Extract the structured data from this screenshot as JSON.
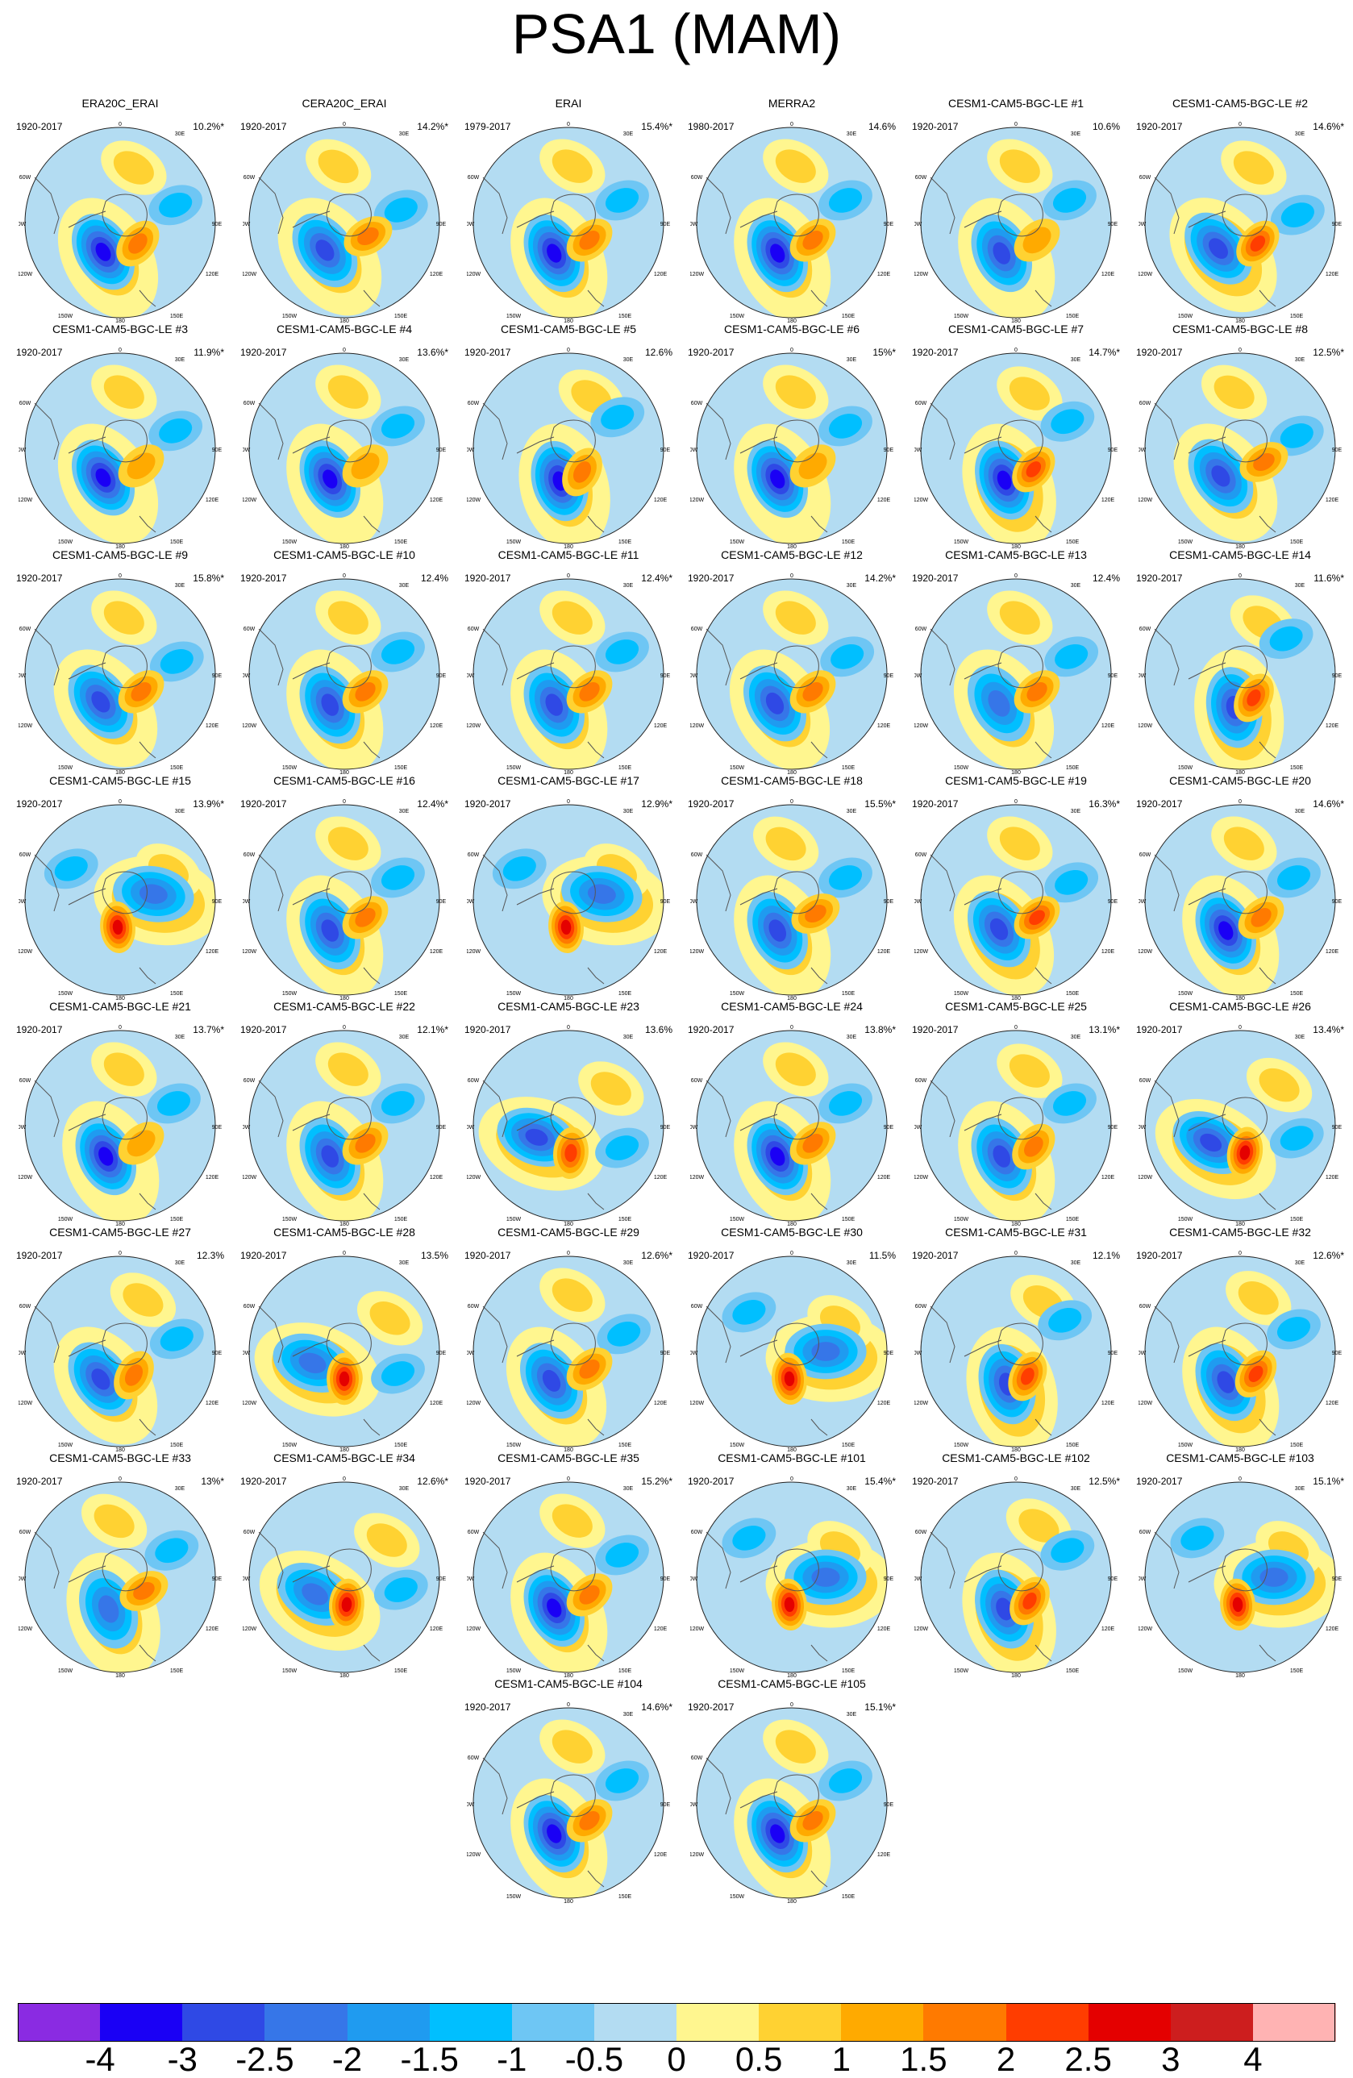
{
  "title": "PSA1 (MAM)",
  "colors": [
    "#8a2be2",
    "#1a00f5",
    "#2f49e5",
    "#3676e8",
    "#1f9bf0",
    "#00bfff",
    "#6ec6f4",
    "#b3dcf2",
    "#fff68f",
    "#ffd232",
    "#ffaa00",
    "#ff7a00",
    "#ff3d00",
    "#e40000",
    "#cd1e1e",
    "#ffb3b3"
  ],
  "colorbar_labels": [
    "-4",
    "-3",
    "-2.5",
    "-2",
    "-1.5",
    "-1",
    "-0.5",
    "0",
    "0.5",
    "1",
    "1.5",
    "2",
    "2.5",
    "3",
    "4"
  ],
  "map_ticks": {
    "top": "0",
    "left_upper": "60W",
    "left_mid": "90W",
    "left_lower": "120W",
    "bottom_left": "150W",
    "bottom": "180",
    "bottom_right": "150E",
    "right_lower": "120E",
    "right_mid": "90E",
    "right_upper": "30E",
    "top_right": "30E"
  },
  "panels": [
    {
      "title": "ERA20C_ERAI",
      "period": "1920-2017",
      "pct": "10.2%*",
      "low_strength": 4,
      "high_strength": 2,
      "low_angle": 240,
      "high_angle": 310
    },
    {
      "title": "CERA20C_ERAI",
      "period": "1920-2017",
      "pct": "14.2%*",
      "low_strength": 3,
      "high_strength": 2,
      "low_angle": 235,
      "high_angle": 330
    },
    {
      "title": "ERAI",
      "period": "1979-2017",
      "pct": "15.4%*",
      "low_strength": 4,
      "high_strength": 2,
      "low_angle": 245,
      "high_angle": 320
    },
    {
      "title": "MERRA2",
      "period": "1980-2017",
      "pct": "14.6%",
      "low_strength": 4,
      "high_strength": 2,
      "low_angle": 245,
      "high_angle": 320
    },
    {
      "title": "CESM1-CAM5-BGC-LE #1",
      "period": "1920-2017",
      "pct": "10.6%",
      "low_strength": 3,
      "high_strength": 1,
      "low_angle": 245,
      "high_angle": 320
    },
    {
      "title": "CESM1-CAM5-BGC-LE #2",
      "period": "1920-2017",
      "pct": "14.6%*",
      "low_strength": 3,
      "high_strength": 3,
      "low_angle": 230,
      "high_angle": 310
    },
    {
      "title": "CESM1-CAM5-BGC-LE #3",
      "period": "1920-2017",
      "pct": "11.9%*",
      "low_strength": 4,
      "high_strength": 1,
      "low_angle": 240,
      "high_angle": 320
    },
    {
      "title": "CESM1-CAM5-BGC-LE #4",
      "period": "1920-2017",
      "pct": "13.6%*",
      "low_strength": 4,
      "high_strength": 1,
      "low_angle": 245,
      "high_angle": 320
    },
    {
      "title": "CESM1-CAM5-BGC-LE #5",
      "period": "1920-2017",
      "pct": "12.6%",
      "low_strength": 4,
      "high_strength": 2,
      "low_angle": 255,
      "high_angle": 300
    },
    {
      "title": "CESM1-CAM5-BGC-LE #6",
      "period": "1920-2017",
      "pct": "15%*",
      "low_strength": 4,
      "high_strength": 1,
      "low_angle": 245,
      "high_angle": 320
    },
    {
      "title": "CESM1-CAM5-BGC-LE #7",
      "period": "1920-2017",
      "pct": "14.7%*",
      "low_strength": 4,
      "high_strength": 3,
      "low_angle": 250,
      "high_angle": 310
    },
    {
      "title": "CESM1-CAM5-BGC-LE #8",
      "period": "1920-2017",
      "pct": "12.5%*",
      "low_strength": 3,
      "high_strength": 2,
      "low_angle": 235,
      "high_angle": 330
    },
    {
      "title": "CESM1-CAM5-BGC-LE #9",
      "period": "1920-2017",
      "pct": "15.8%*",
      "low_strength": 3,
      "high_strength": 2,
      "low_angle": 235,
      "high_angle": 320
    },
    {
      "title": "CESM1-CAM5-BGC-LE #10",
      "period": "1920-2017",
      "pct": "12.4%",
      "low_strength": 3,
      "high_strength": 2,
      "low_angle": 245,
      "high_angle": 320
    },
    {
      "title": "CESM1-CAM5-BGC-LE #11",
      "period": "1920-2017",
      "pct": "12.4%*",
      "low_strength": 3,
      "high_strength": 2,
      "low_angle": 245,
      "high_angle": 320
    },
    {
      "title": "CESM1-CAM5-BGC-LE #12",
      "period": "1920-2017",
      "pct": "14.2%*",
      "low_strength": 3,
      "high_strength": 2,
      "low_angle": 240,
      "high_angle": 320
    },
    {
      "title": "CESM1-CAM5-BGC-LE #13",
      "period": "1920-2017",
      "pct": "12.4%",
      "low_strength": 2,
      "high_strength": 2,
      "low_angle": 240,
      "high_angle": 320
    },
    {
      "title": "CESM1-CAM5-BGC-LE #14",
      "period": "1920-2017",
      "pct": "11.6%*",
      "low_strength": 3,
      "high_strength": 3,
      "low_angle": 260,
      "high_angle": 300
    },
    {
      "title": "CESM1-CAM5-BGC-LE #15",
      "period": "1920-2017",
      "pct": "13.9%*",
      "low_strength": 2,
      "high_strength": 4,
      "low_angle": 10,
      "high_angle": 265
    },
    {
      "title": "CESM1-CAM5-BGC-LE #16",
      "period": "1920-2017",
      "pct": "12.4%*",
      "low_strength": 3,
      "high_strength": 2,
      "low_angle": 245,
      "high_angle": 320
    },
    {
      "title": "CESM1-CAM5-BGC-LE #17",
      "period": "1920-2017",
      "pct": "12.9%*",
      "low_strength": 2,
      "high_strength": 4,
      "low_angle": 10,
      "high_angle": 265
    },
    {
      "title": "CESM1-CAM5-BGC-LE #18",
      "period": "1920-2017",
      "pct": "15.5%*",
      "low_strength": 3,
      "high_strength": 2,
      "low_angle": 245,
      "high_angle": 330
    },
    {
      "title": "CESM1-CAM5-BGC-LE #19",
      "period": "1920-2017",
      "pct": "16.3%*",
      "low_strength": 3,
      "high_strength": 3,
      "low_angle": 240,
      "high_angle": 320
    },
    {
      "title": "CESM1-CAM5-BGC-LE #20",
      "period": "1920-2017",
      "pct": "14.6%*",
      "low_strength": 4,
      "high_strength": 2,
      "low_angle": 245,
      "high_angle": 320
    },
    {
      "title": "CESM1-CAM5-BGC-LE #21",
      "period": "1920-2017",
      "pct": "13.7%*",
      "low_strength": 4,
      "high_strength": 1,
      "low_angle": 245,
      "high_angle": 320
    },
    {
      "title": "CESM1-CAM5-BGC-LE #22",
      "period": "1920-2017",
      "pct": "12.1%*",
      "low_strength": 3,
      "high_strength": 2,
      "low_angle": 245,
      "high_angle": 320
    },
    {
      "title": "CESM1-CAM5-BGC-LE #23",
      "period": "1920-2017",
      "pct": "13.6%",
      "low_strength": 3,
      "high_strength": 3,
      "low_angle": 200,
      "high_angle": 275
    },
    {
      "title": "CESM1-CAM5-BGC-LE #24",
      "period": "1920-2017",
      "pct": "13.8%*",
      "low_strength": 4,
      "high_strength": 2,
      "low_angle": 245,
      "high_angle": 320
    },
    {
      "title": "CESM1-CAM5-BGC-LE #25",
      "period": "1920-2017",
      "pct": "13.1%*",
      "low_strength": 3,
      "high_strength": 2,
      "low_angle": 245,
      "high_angle": 310
    },
    {
      "title": "CESM1-CAM5-BGC-LE #26",
      "period": "1920-2017",
      "pct": "13.4%*",
      "low_strength": 3,
      "high_strength": 4,
      "low_angle": 210,
      "high_angle": 280
    },
    {
      "title": "CESM1-CAM5-BGC-LE #27",
      "period": "1920-2017",
      "pct": "12.3%",
      "low_strength": 3,
      "high_strength": 2,
      "low_angle": 235,
      "high_angle": 300
    },
    {
      "title": "CESM1-CAM5-BGC-LE #28",
      "period": "1920-2017",
      "pct": "13.5%",
      "low_strength": 2,
      "high_strength": 4,
      "low_angle": 200,
      "high_angle": 270
    },
    {
      "title": "CESM1-CAM5-BGC-LE #29",
      "period": "1920-2017",
      "pct": "12.6%*",
      "low_strength": 3,
      "high_strength": 2,
      "low_angle": 240,
      "high_angle": 320
    },
    {
      "title": "CESM1-CAM5-BGC-LE #30",
      "period": "1920-2017",
      "pct": "11.5%",
      "low_strength": 2,
      "high_strength": 4,
      "low_angle": 0,
      "high_angle": 265
    },
    {
      "title": "CESM1-CAM5-BGC-LE #31",
      "period": "1920-2017",
      "pct": "12.1%",
      "low_strength": 3,
      "high_strength": 3,
      "low_angle": 255,
      "high_angle": 295
    },
    {
      "title": "CESM1-CAM5-BGC-LE #32",
      "period": "1920-2017",
      "pct": "12.6%*",
      "low_strength": 3,
      "high_strength": 3,
      "low_angle": 245,
      "high_angle": 305
    },
    {
      "title": "CESM1-CAM5-BGC-LE #33",
      "period": "1920-2017",
      "pct": "13%*",
      "low_strength": 2,
      "high_strength": 2,
      "low_angle": 250,
      "high_angle": 330
    },
    {
      "title": "CESM1-CAM5-BGC-LE #34",
      "period": "1920-2017",
      "pct": "12.6%*",
      "low_strength": 2,
      "high_strength": 4,
      "low_angle": 210,
      "high_angle": 275
    },
    {
      "title": "CESM1-CAM5-BGC-LE #35",
      "period": "1920-2017",
      "pct": "15.2%*",
      "low_strength": 4,
      "high_strength": 2,
      "low_angle": 245,
      "high_angle": 320
    },
    {
      "title": "CESM1-CAM5-BGC-LE #101",
      "period": "1920-2017",
      "pct": "15.4%*",
      "low_strength": 2,
      "high_strength": 4,
      "low_angle": 0,
      "high_angle": 265
    },
    {
      "title": "CESM1-CAM5-BGC-LE #102",
      "period": "1920-2017",
      "pct": "12.5%*",
      "low_strength": 3,
      "high_strength": 3,
      "low_angle": 250,
      "high_angle": 300
    },
    {
      "title": "CESM1-CAM5-BGC-LE #103",
      "period": "1920-2017",
      "pct": "15.1%*",
      "low_strength": 2,
      "high_strength": 4,
      "low_angle": 0,
      "high_angle": 265
    },
    {
      "title": "CESM1-CAM5-BGC-LE #104",
      "period": "1920-2017",
      "pct": "14.6%*",
      "low_strength": 4,
      "high_strength": 2,
      "low_angle": 245,
      "high_angle": 320
    },
    {
      "title": "CESM1-CAM5-BGC-LE #105",
      "period": "1920-2017",
      "pct": "15.1%*",
      "low_strength": 4,
      "high_strength": 2,
      "low_angle": 245,
      "high_angle": 320
    }
  ]
}
